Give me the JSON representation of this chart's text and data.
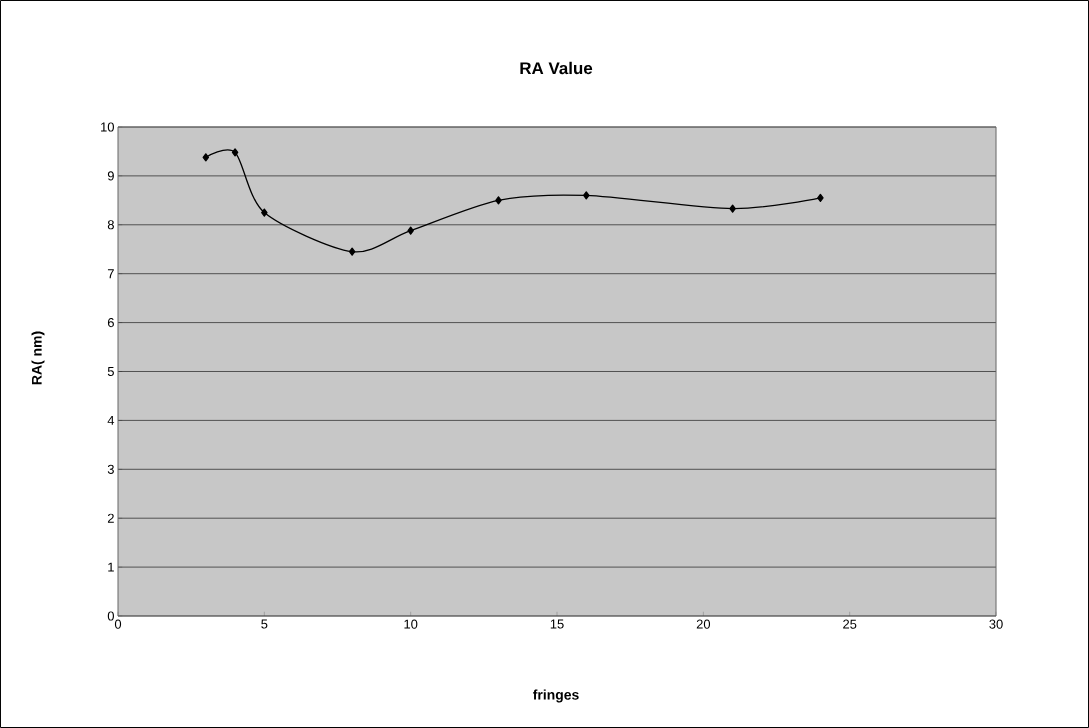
{
  "chart_data": {
    "type": "line",
    "title": "RA Value",
    "xlabel": "fringes",
    "ylabel": "RA( nm)",
    "x": [
      3,
      4,
      5,
      8,
      10,
      13,
      16,
      21,
      24
    ],
    "series": [
      {
        "color": "#000000",
        "values": [
          9.38,
          9.48,
          8.25,
          7.45,
          7.88,
          8.5,
          8.6,
          8.33,
          8.55
        ]
      }
    ],
    "xlim": [
      0,
      30
    ],
    "xticks": [
      0,
      5,
      10,
      15,
      20,
      25,
      30
    ],
    "ylim": [
      0,
      10
    ],
    "yticks": [
      0,
      1,
      2,
      3,
      4,
      5,
      6,
      7,
      8,
      9,
      10
    ],
    "grid": "y",
    "marker": "diamond",
    "line_style": "solid"
  }
}
